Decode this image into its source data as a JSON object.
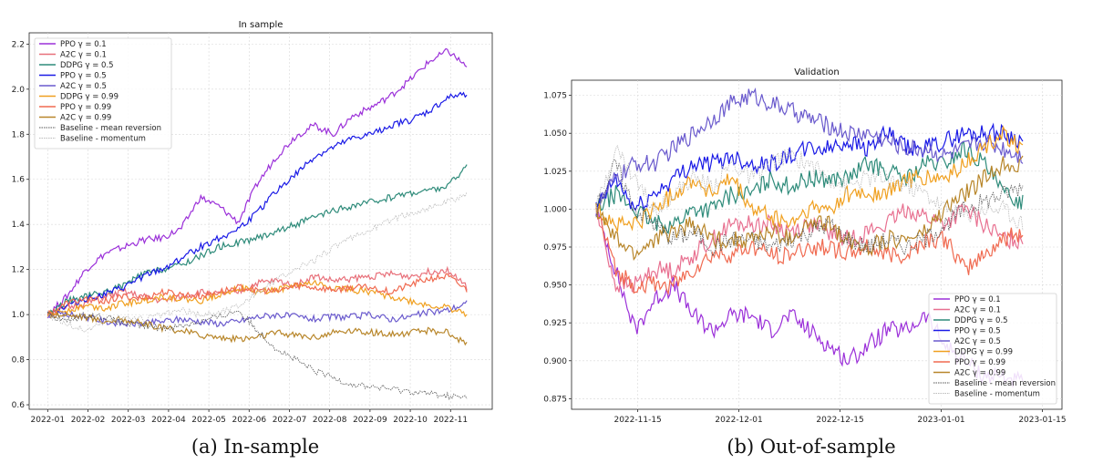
{
  "chart_data": [
    {
      "type": "line",
      "title": "In sample",
      "xlabel": "",
      "ylabel": "",
      "x_ticks": [
        "2022-01",
        "2022-02",
        "2022-03",
        "2022-04",
        "2022-05",
        "2022-06",
        "2022-07",
        "2022-08",
        "2022-09",
        "2022-10",
        "2022-11"
      ],
      "y_ticks": [
        "0.6",
        "0.8",
        "1.0",
        "1.2",
        "1.4",
        "1.6",
        "1.8",
        "2.0",
        "2.2"
      ],
      "ylim": [
        0.58,
        2.25
      ],
      "grid": true,
      "legend_position": "top-left",
      "series": [
        {
          "name": "PPO γ = 0.1",
          "color": "#9b30d9",
          "values": [
            1.0,
            1.08,
            1.2,
            1.27,
            1.3,
            1.33,
            1.34,
            1.38,
            1.52,
            1.48,
            1.41,
            1.58,
            1.7,
            1.79,
            1.84,
            1.8,
            1.88,
            1.92,
            1.97,
            2.04,
            2.12,
            2.17,
            2.1
          ]
        },
        {
          "name": "A2C γ = 0.1",
          "color": "#e8707a",
          "values": [
            1.0,
            1.03,
            1.05,
            1.08,
            1.1,
            1.08,
            1.06,
            1.08,
            1.1,
            1.09,
            1.1,
            1.14,
            1.15,
            1.13,
            1.17,
            1.15,
            1.16,
            1.17,
            1.18,
            1.17,
            1.19,
            1.2,
            1.12
          ]
        },
        {
          "name": "DDPG γ = 0.5",
          "color": "#2e8b7a",
          "values": [
            1.0,
            1.06,
            1.08,
            1.1,
            1.13,
            1.18,
            1.2,
            1.22,
            1.26,
            1.3,
            1.32,
            1.34,
            1.37,
            1.4,
            1.43,
            1.46,
            1.48,
            1.5,
            1.52,
            1.54,
            1.55,
            1.57,
            1.66
          ]
        },
        {
          "name": "PPO γ = 0.5",
          "color": "#1a1ae6",
          "values": [
            1.0,
            1.04,
            1.07,
            1.09,
            1.12,
            1.17,
            1.2,
            1.25,
            1.3,
            1.34,
            1.38,
            1.45,
            1.55,
            1.62,
            1.7,
            1.74,
            1.78,
            1.8,
            1.84,
            1.86,
            1.9,
            1.96,
            1.98
          ]
        },
        {
          "name": "A2C γ = 0.5",
          "color": "#6a5acd",
          "values": [
            1.0,
            1.0,
            0.99,
            0.97,
            0.96,
            0.96,
            0.97,
            0.98,
            0.97,
            0.96,
            0.97,
            0.99,
            1.0,
            0.99,
            0.98,
            0.99,
            0.99,
            1.0,
            0.98,
            0.99,
            1.01,
            1.02,
            1.05
          ]
        },
        {
          "name": "DDPG γ = 0.99",
          "color": "#f0a020",
          "values": [
            1.0,
            1.02,
            1.04,
            1.03,
            1.05,
            1.06,
            1.08,
            1.07,
            1.06,
            1.09,
            1.12,
            1.1,
            1.11,
            1.13,
            1.14,
            1.12,
            1.11,
            1.1,
            1.08,
            1.06,
            1.04,
            1.03,
            1.0
          ]
        },
        {
          "name": "PPO γ = 0.99",
          "color": "#f06a50",
          "values": [
            1.0,
            1.05,
            1.07,
            1.06,
            1.08,
            1.07,
            1.1,
            1.09,
            1.08,
            1.1,
            1.12,
            1.11,
            1.1,
            1.13,
            1.12,
            1.11,
            1.12,
            1.12,
            1.1,
            1.13,
            1.16,
            1.17,
            1.11
          ]
        },
        {
          "name": "A2C γ = 0.99",
          "color": "#b8862a",
          "values": [
            1.0,
            1.0,
            0.99,
            0.97,
            0.98,
            0.96,
            0.94,
            0.93,
            0.91,
            0.9,
            0.89,
            0.9,
            0.92,
            0.91,
            0.9,
            0.92,
            0.93,
            0.92,
            0.91,
            0.92,
            0.93,
            0.92,
            0.87
          ]
        },
        {
          "name": "Baseline - mean reversion",
          "color": "#555555",
          "dashed": true,
          "values": [
            1.0,
            0.97,
            1.0,
            0.99,
            0.96,
            0.95,
            0.94,
            0.95,
            0.97,
            0.99,
            1.02,
            0.93,
            0.85,
            0.8,
            0.75,
            0.72,
            0.69,
            0.68,
            0.67,
            0.66,
            0.65,
            0.64,
            0.63
          ]
        },
        {
          "name": "Baseline - momentum",
          "color": "#bbbbbb",
          "dashed": true,
          "values": [
            1.0,
            0.96,
            0.93,
            0.97,
            0.99,
            0.98,
            1.0,
            1.02,
            1.0,
            1.01,
            1.04,
            1.1,
            1.15,
            1.2,
            1.24,
            1.3,
            1.34,
            1.38,
            1.42,
            1.45,
            1.47,
            1.5,
            1.53
          ]
        }
      ]
    },
    {
      "type": "line",
      "title": "Validation",
      "xlabel": "",
      "ylabel": "",
      "x_ticks": [
        "2022-11-15",
        "2022-12-01",
        "2022-12-15",
        "2023-01-01",
        "2023-01-15"
      ],
      "y_ticks": [
        "0.875",
        "0.900",
        "0.925",
        "0.950",
        "0.975",
        "1.000",
        "1.025",
        "1.050",
        "1.075"
      ],
      "ylim": [
        0.868,
        1.085
      ],
      "grid": true,
      "legend_position": "bottom-right",
      "series": [
        {
          "name": "PPO γ = 0.1",
          "color": "#9b30d9",
          "values": [
            1.0,
            0.96,
            0.92,
            0.94,
            0.95,
            0.93,
            0.92,
            0.93,
            0.93,
            0.92,
            0.93,
            0.92,
            0.91,
            0.9,
            0.91,
            0.92,
            0.92,
            0.93,
            0.91,
            0.9,
            0.89,
            0.89,
            0.885
          ]
        },
        {
          "name": "A2C γ = 0.1",
          "color": "#e87090",
          "values": [
            1.0,
            0.95,
            0.95,
            0.96,
            0.96,
            0.97,
            0.98,
            0.99,
            0.99,
            0.99,
            0.985,
            0.99,
            0.985,
            0.98,
            0.985,
            0.99,
            1.0,
            0.995,
            0.99,
            1.0,
            0.99,
            0.98,
            0.98
          ]
        },
        {
          "name": "DDPG γ = 0.5",
          "color": "#2e8b7a",
          "values": [
            1.0,
            1.01,
            1.0,
            0.99,
            0.99,
            1.0,
            1.0,
            1.01,
            1.01,
            1.02,
            1.015,
            1.02,
            1.02,
            1.02,
            1.03,
            1.025,
            1.02,
            1.03,
            1.03,
            1.04,
            1.03,
            1.01,
            1.005
          ]
        },
        {
          "name": "PPO γ = 0.5",
          "color": "#1a1ae6",
          "values": [
            1.0,
            1.02,
            1.0,
            1.01,
            1.02,
            1.03,
            1.03,
            1.035,
            1.03,
            1.03,
            1.035,
            1.04,
            1.04,
            1.045,
            1.04,
            1.05,
            1.04,
            1.04,
            1.045,
            1.05,
            1.05,
            1.05,
            1.045
          ]
        },
        {
          "name": "A2C γ = 0.5",
          "color": "#6a5acd",
          "values": [
            1.0,
            1.02,
            1.03,
            1.03,
            1.04,
            1.05,
            1.06,
            1.07,
            1.075,
            1.07,
            1.065,
            1.06,
            1.055,
            1.05,
            1.05,
            1.045,
            1.04,
            1.04,
            1.035,
            1.04,
            1.045,
            1.04,
            1.035
          ]
        },
        {
          "name": "DDPG γ = 0.99",
          "color": "#f0a020",
          "values": [
            1.0,
            0.99,
            0.99,
            1.0,
            1.01,
            1.02,
            1.01,
            1.02,
            1.0,
            0.995,
            0.99,
            1.0,
            1.0,
            1.01,
            1.01,
            1.01,
            1.02,
            1.02,
            1.02,
            1.03,
            1.04,
            1.05,
            1.04
          ]
        },
        {
          "name": "PPO γ = 0.99",
          "color": "#f06a50",
          "values": [
            1.0,
            0.96,
            0.95,
            0.95,
            0.95,
            0.96,
            0.97,
            0.97,
            0.975,
            0.97,
            0.97,
            0.975,
            0.975,
            0.97,
            0.975,
            0.97,
            0.97,
            0.98,
            0.98,
            0.96,
            0.97,
            0.98,
            0.985
          ]
        },
        {
          "name": "A2C γ = 0.99",
          "color": "#b8862a",
          "values": [
            1.0,
            0.98,
            0.97,
            0.98,
            0.985,
            0.99,
            0.98,
            0.98,
            0.98,
            0.985,
            0.98,
            0.99,
            0.99,
            0.98,
            0.975,
            0.98,
            0.98,
            0.985,
            1.0,
            1.01,
            1.02,
            1.03,
            1.03
          ]
        },
        {
          "name": "Baseline - mean reversion",
          "color": "#555555",
          "dashed": true,
          "values": [
            1.0,
            1.03,
            1.0,
            0.99,
            0.98,
            0.985,
            0.975,
            0.98,
            0.98,
            0.975,
            0.98,
            0.985,
            0.99,
            0.98,
            0.975,
            0.98,
            0.975,
            0.98,
            0.99,
            1.0,
            1.005,
            1.01,
            1.015
          ]
        },
        {
          "name": "Baseline - momentum",
          "color": "#bbbbbb",
          "dashed": true,
          "values": [
            1.0,
            1.04,
            1.02,
            1.0,
            1.01,
            1.02,
            1.015,
            1.03,
            1.02,
            1.03,
            1.035,
            1.03,
            1.02,
            1.015,
            1.02,
            1.02,
            1.015,
            1.01,
            1.0,
            0.995,
            1.0,
            1.0,
            0.99
          ]
        }
      ]
    }
  ],
  "captions": {
    "a": "(a) In-sample",
    "b": "(b) Out-of-sample"
  }
}
